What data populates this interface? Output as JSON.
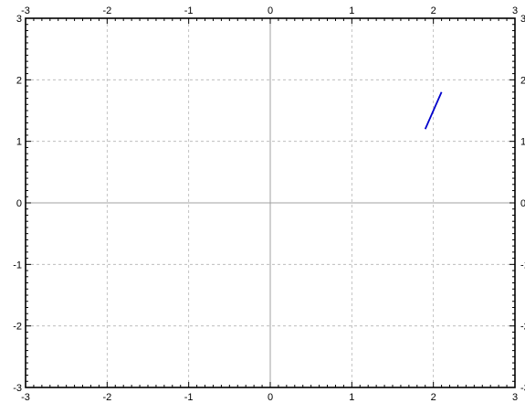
{
  "chart_data": {
    "type": "line",
    "title": "",
    "xlabel": "",
    "ylabel": "",
    "xlim": [
      -3,
      3
    ],
    "ylim": [
      -3,
      3
    ],
    "grid": true,
    "x_ticks": [
      "-3",
      "-2",
      "-1",
      "0",
      "1",
      "2",
      "3"
    ],
    "y_ticks": [
      "-3",
      "-2",
      "-1",
      "0",
      "1",
      "2",
      "3"
    ],
    "series": [
      {
        "color": "#0000cc",
        "x": [
          1.9,
          2.1
        ],
        "y": [
          1.2,
          1.8
        ]
      }
    ]
  },
  "colors": {
    "grid": "#b4b4b4",
    "axis": "#000000",
    "zero_line": "#a0a0a0",
    "background": "#ffffff"
  }
}
